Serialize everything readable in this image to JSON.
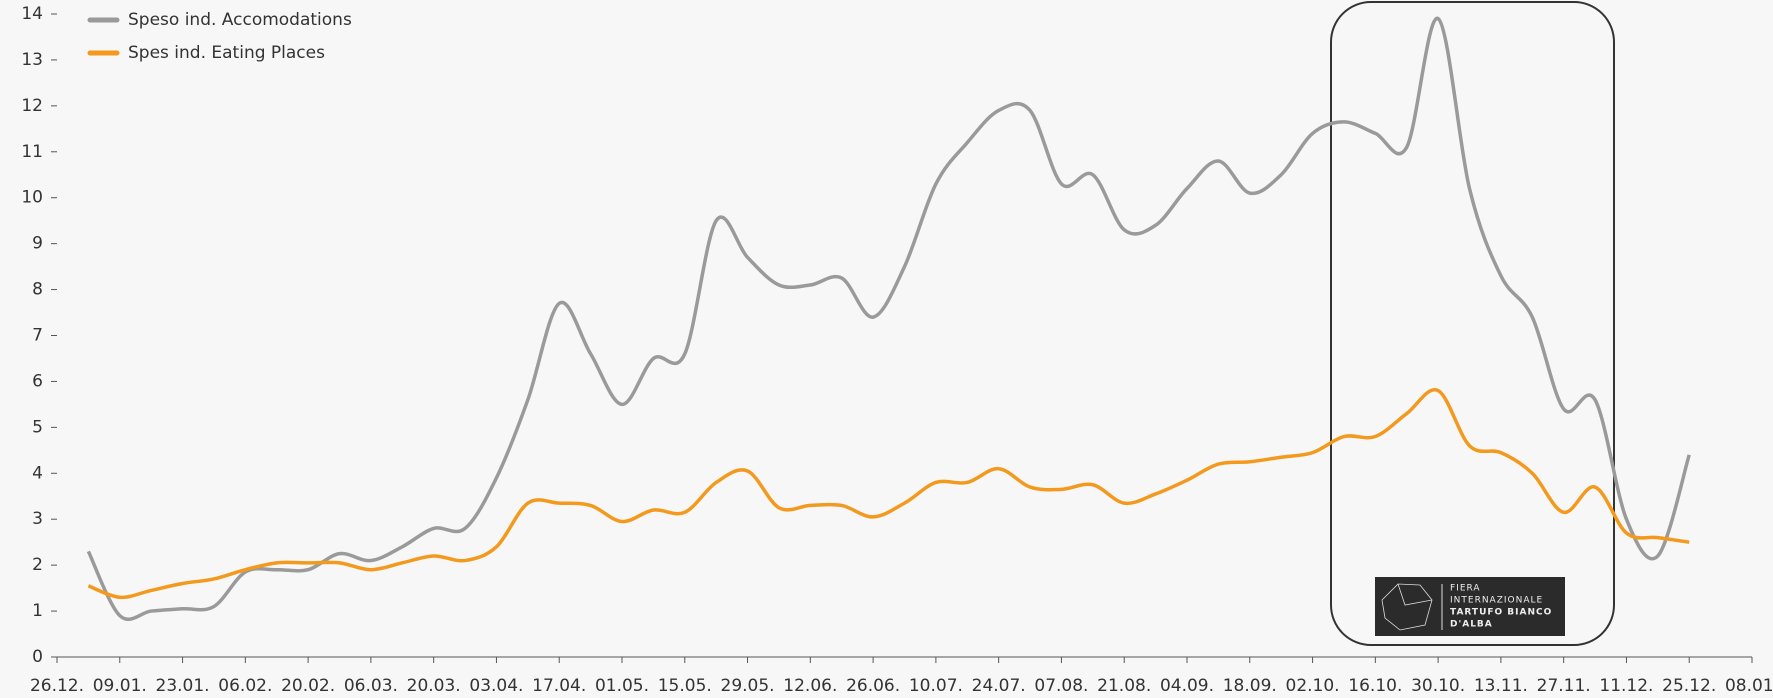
{
  "chart_data": {
    "type": "line",
    "categories": [
      "26.12.",
      null,
      "09.01.",
      null,
      "23.01.",
      null,
      "06.02.",
      null,
      "20.02.",
      null,
      "06.03.",
      null,
      "20.03.",
      null,
      "03.04.",
      null,
      "17.04.",
      null,
      "01.05.",
      null,
      "15.05.",
      null,
      "29.05.",
      null,
      "12.06.",
      null,
      "26.06.",
      null,
      "10.07.",
      null,
      "24.07.",
      null,
      "07.08.",
      null,
      "21.08.",
      null,
      "04.09.",
      null,
      "18.09.",
      null,
      "02.10.",
      null,
      "16.10.",
      null,
      "30.10.",
      null,
      "13.11.",
      null,
      "27.11.",
      null,
      "11.12.",
      null,
      "25.12.",
      null,
      "08.01."
    ],
    "series": [
      {
        "name": "Speso ind. Accomodations",
        "color": "#9a9a9a",
        "values": [
          null,
          2.3,
          0.9,
          1.0,
          1.05,
          1.1,
          1.85,
          1.9,
          1.9,
          2.25,
          2.1,
          2.4,
          2.8,
          2.8,
          3.9,
          5.6,
          7.7,
          6.6,
          5.5,
          6.5,
          6.6,
          9.5,
          8.7,
          8.1,
          8.1,
          8.25,
          7.4,
          8.5,
          10.3,
          11.2,
          11.9,
          11.9,
          10.3,
          10.5,
          9.3,
          9.4,
          10.2,
          10.8,
          10.1,
          10.5,
          11.4,
          11.65,
          11.4,
          11.1,
          13.9,
          10.2,
          8.3,
          7.4,
          5.4,
          5.6,
          3.0,
          2.2,
          4.4,
          null,
          null
        ]
      },
      {
        "name": "Spes ind. Eating Places",
        "color": "#f39a1e",
        "values": [
          null,
          1.55,
          1.3,
          1.45,
          1.6,
          1.7,
          1.9,
          2.05,
          2.05,
          2.05,
          1.9,
          2.05,
          2.2,
          2.1,
          2.4,
          3.35,
          3.35,
          3.3,
          2.95,
          3.2,
          3.15,
          3.8,
          4.05,
          3.25,
          3.3,
          3.3,
          3.05,
          3.35,
          3.8,
          3.8,
          4.1,
          3.7,
          3.65,
          3.75,
          3.35,
          3.55,
          3.85,
          4.2,
          4.25,
          4.35,
          4.45,
          4.8,
          4.8,
          5.3,
          5.8,
          4.6,
          4.45,
          4.0,
          3.15,
          3.7,
          2.7,
          2.6,
          2.5,
          null,
          null
        ]
      }
    ],
    "ylim": [
      0,
      14
    ],
    "yticks": [
      0,
      1,
      2,
      3,
      4,
      5,
      6,
      7,
      8,
      9,
      10,
      11,
      12,
      13,
      14
    ],
    "grid": false,
    "legend": "top-left",
    "annotation": [
      "FIERA",
      "INTERNAZIONALE",
      "TARTUFO BIANCO",
      "D'ALBA"
    ]
  }
}
